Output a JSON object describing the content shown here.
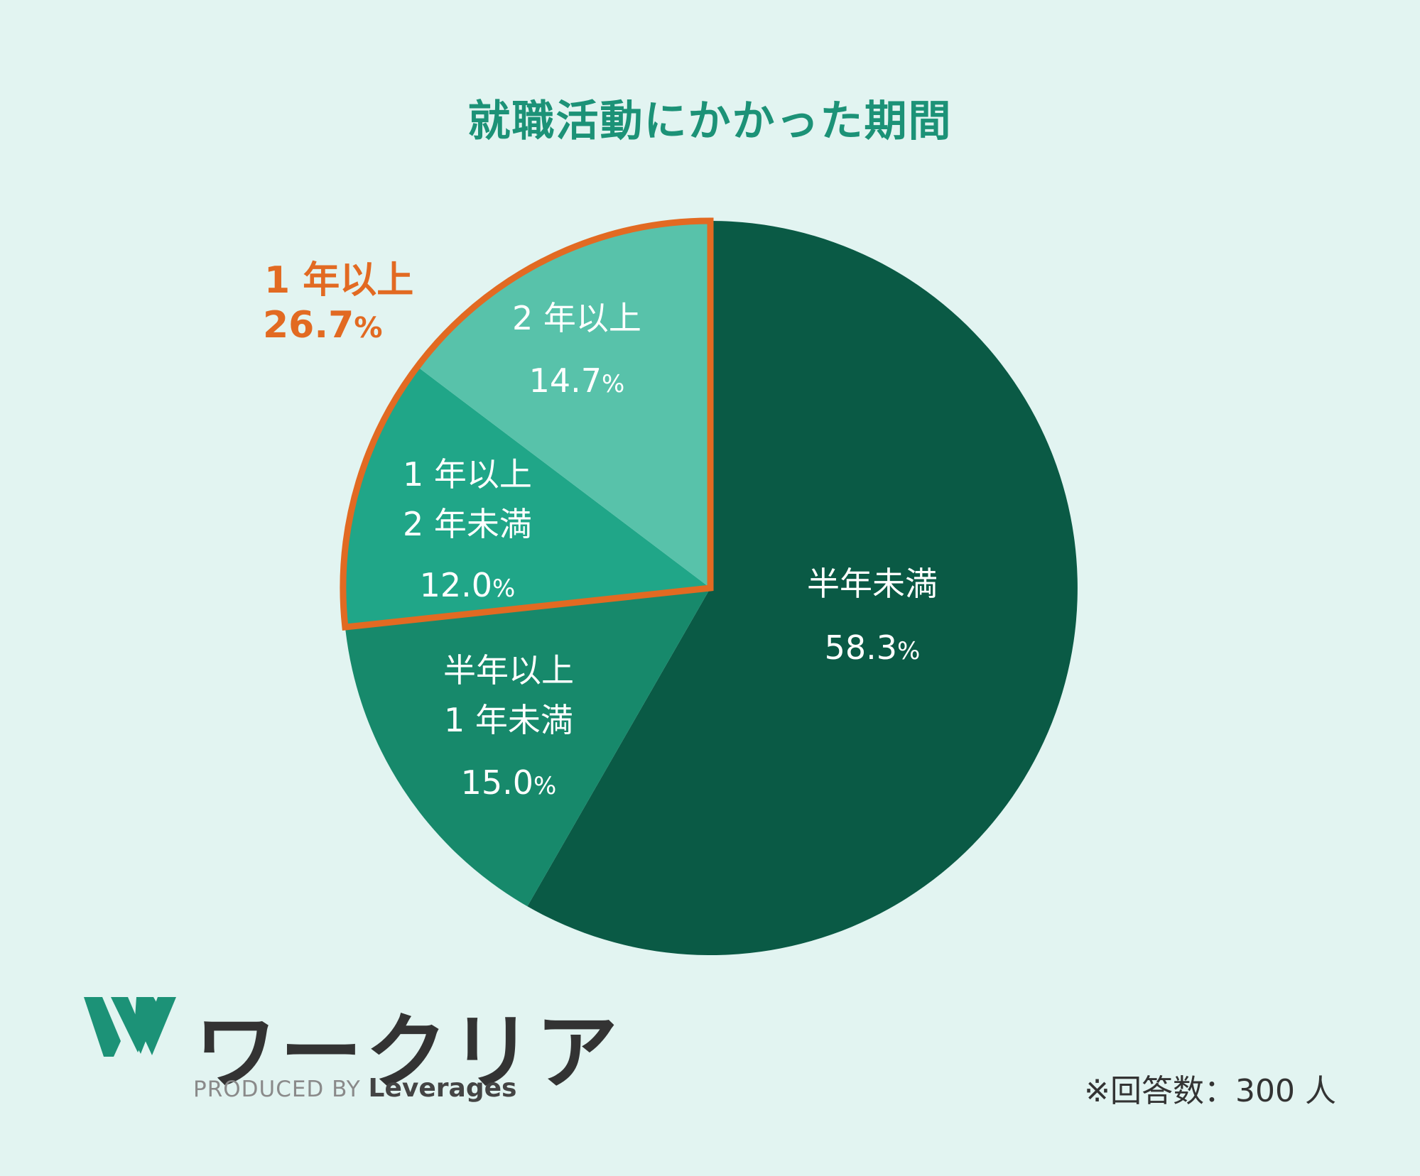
{
  "title": "就職活動にかかった期間",
  "chart_data": {
    "type": "pie",
    "title": "就職活動にかかった期間",
    "slices": [
      {
        "label_lines": [
          "半年未満"
        ],
        "value": 58.3,
        "value_text": "58.3",
        "color": "#0a5a45"
      },
      {
        "label_lines": [
          "半年以上",
          "1 年未満"
        ],
        "value": 15.0,
        "value_text": "15.0",
        "color": "#17896b"
      },
      {
        "label_lines": [
          "1 年以上",
          "2 年未満"
        ],
        "value": 12.0,
        "value_text": "12.0",
        "color": "#20a688"
      },
      {
        "label_lines": [
          "2 年以上"
        ],
        "value": 14.7,
        "value_text": "14.7",
        "color": "#58c2aa"
      }
    ],
    "start_angle_deg": 0,
    "direction": "clockwise",
    "unit": "%",
    "highlight": {
      "label": "1 年以上",
      "value_text": "26.7",
      "unit": "%",
      "color": "#e26a22",
      "slices": [
        2,
        3
      ]
    }
  },
  "brand": {
    "name": "ワークリア",
    "produced_by": "PRODUCED BY",
    "company": "Leverages",
    "color": "#1c9277"
  },
  "footnote": "※回答数：300 人"
}
